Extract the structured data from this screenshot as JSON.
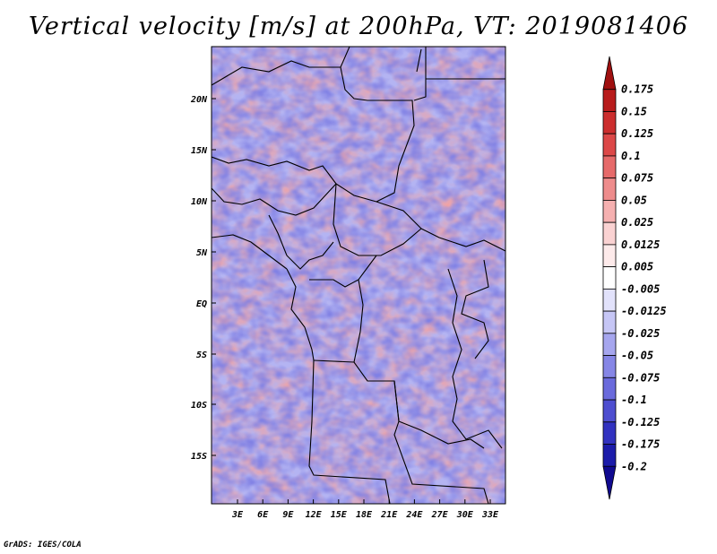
{
  "title": "Vertical velocity [m/s] at 200hPa, VT: 2019081406",
  "credit": "GrADS: IGES/COLA",
  "map": {
    "field": "vertical velocity",
    "units": "m/s",
    "level": "200hPa",
    "valid_time": "2019081406",
    "lat_ticks": [
      "20N",
      "15N",
      "10N",
      "5N",
      "EQ",
      "5S",
      "10S",
      "15S"
    ],
    "lon_ticks": [
      "3E",
      "6E",
      "9E",
      "12E",
      "15E",
      "18E",
      "21E",
      "24E",
      "27E",
      "30E",
      "33E"
    ]
  },
  "colorbar": {
    "levels": [
      "0.175",
      "0.15",
      "0.125",
      "0.1",
      "0.075",
      "0.05",
      "0.025",
      "0.0125",
      "0.005",
      "-0.005",
      "-0.0125",
      "-0.025",
      "-0.05",
      "-0.075",
      "-0.1",
      "-0.125",
      "-0.175",
      "-0.2"
    ],
    "colors": [
      "#a01010",
      "#b81c1c",
      "#cc2e2e",
      "#dc4848",
      "#e66a6a",
      "#ee8c8c",
      "#f5b0b0",
      "#fad2d2",
      "#fdeaea",
      "#ffffff",
      "#e2e2fb",
      "#c6c6f5",
      "#a6a6ee",
      "#8686e6",
      "#6a6adc",
      "#4e4ed0",
      "#3232c0",
      "#1c1caa",
      "#100a90"
    ]
  }
}
